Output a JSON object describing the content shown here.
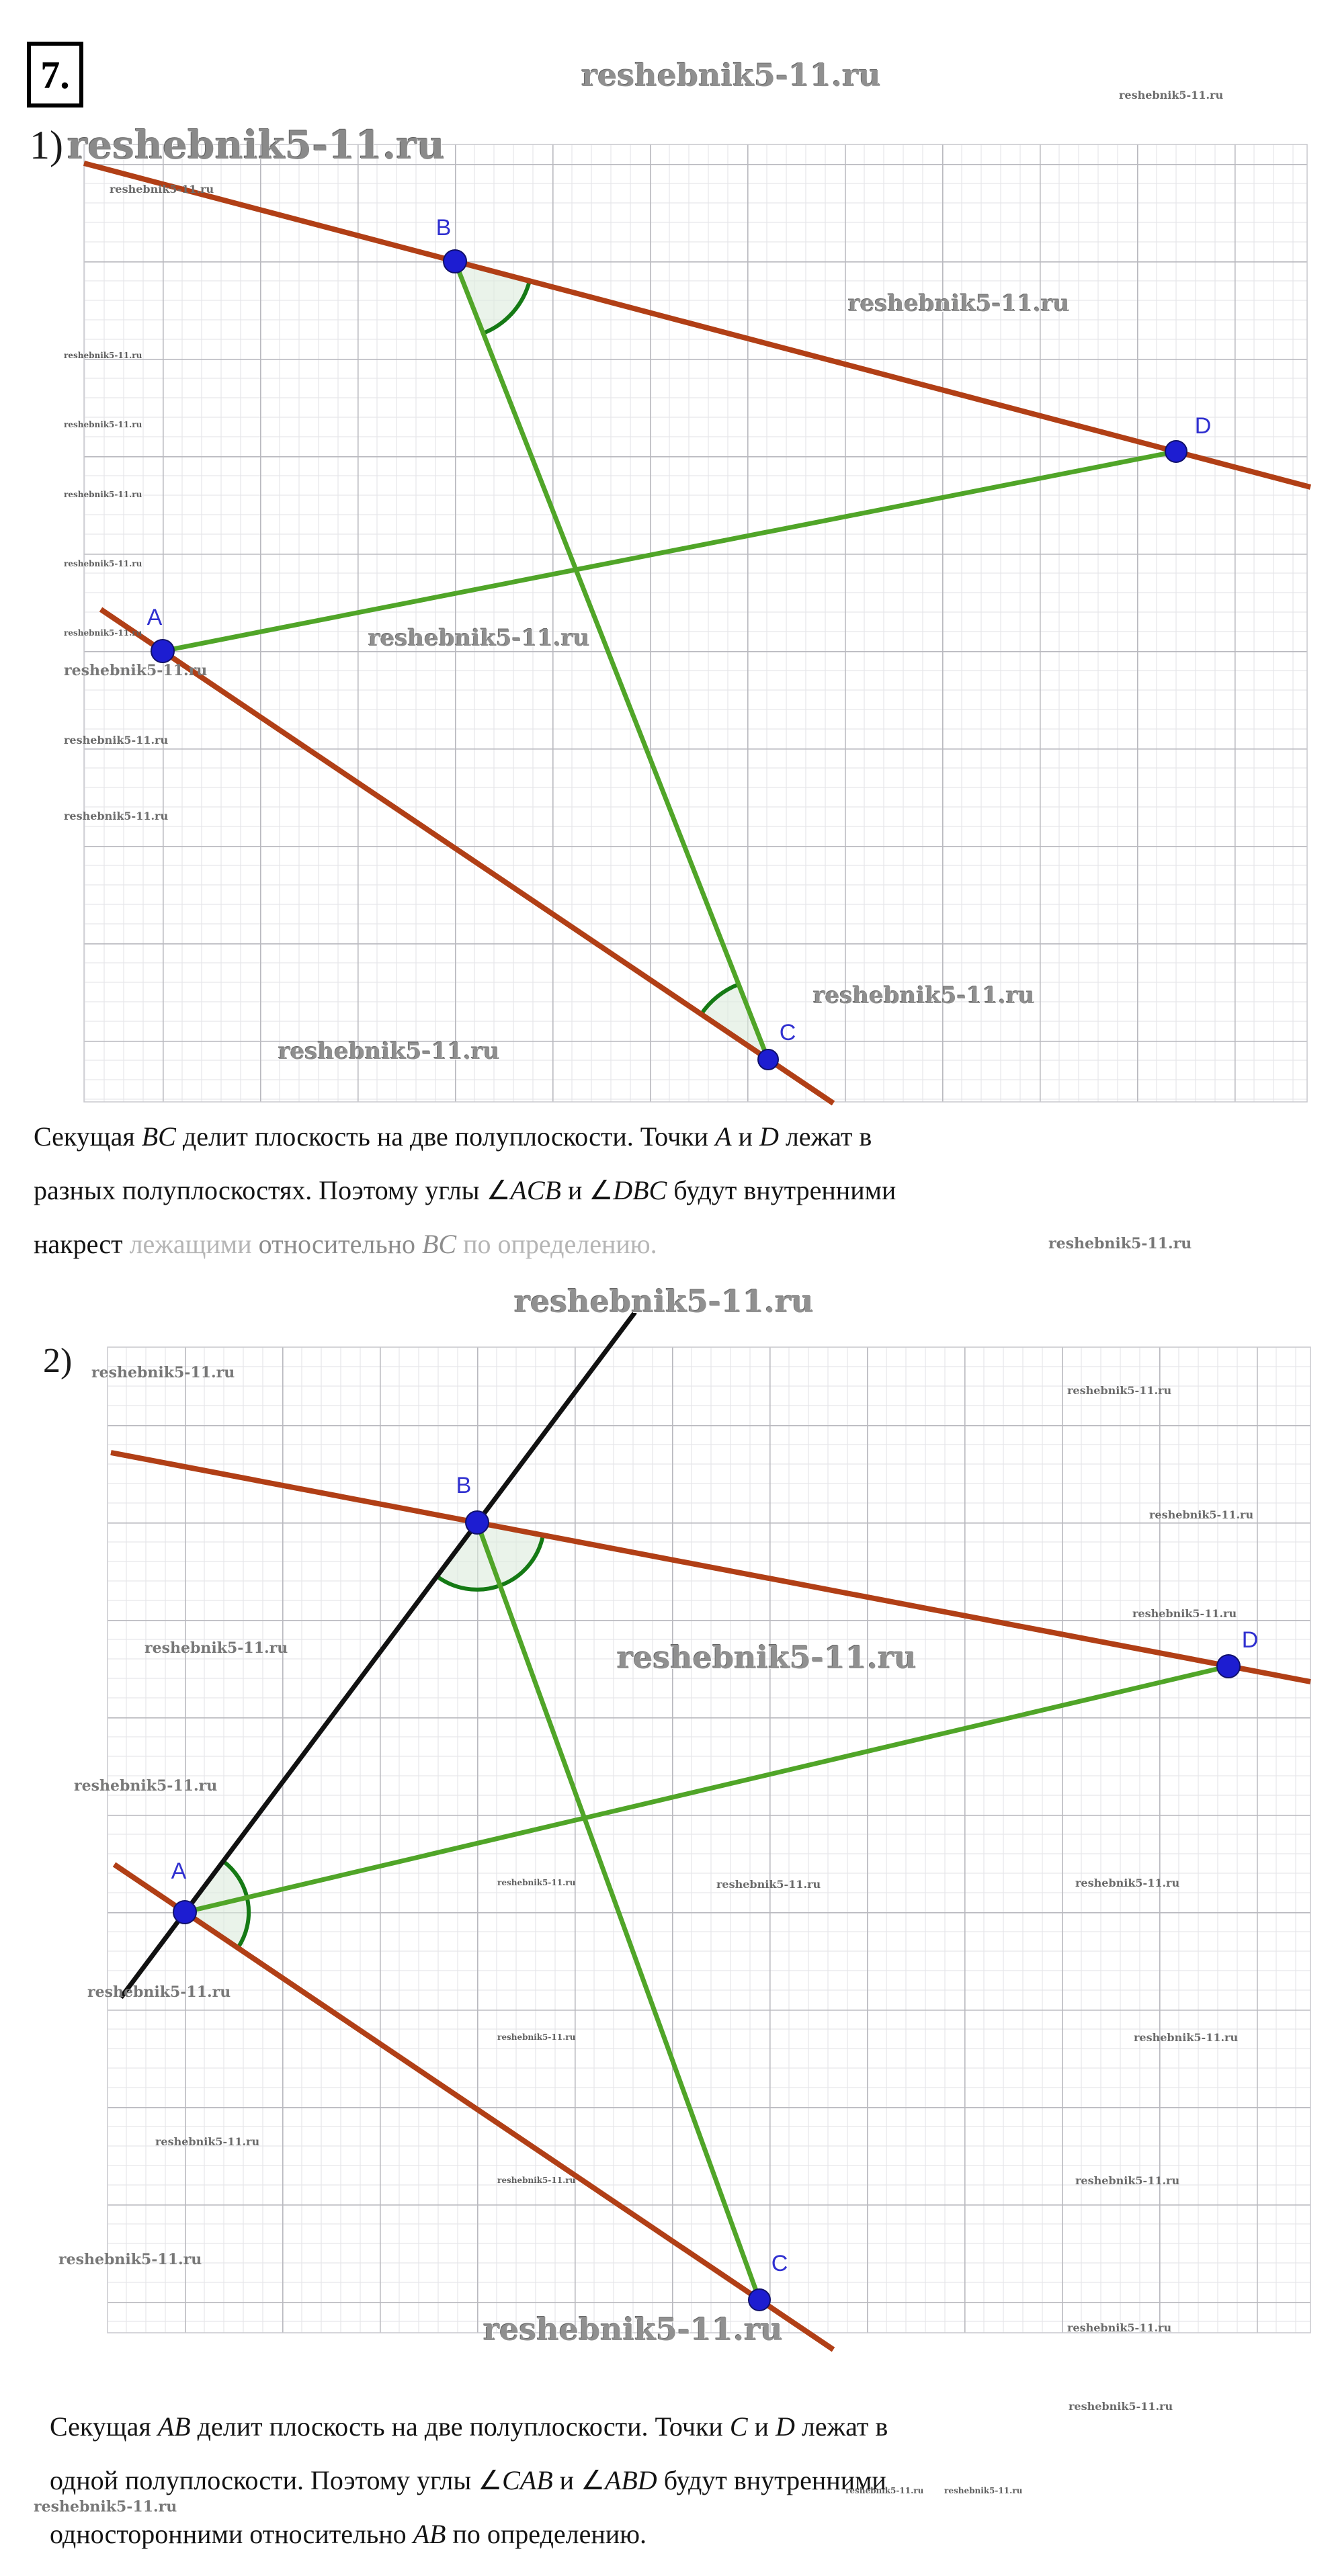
{
  "watermark": {
    "text": "reshebnik5-11.ru"
  },
  "header": {
    "problem_number": "7.",
    "part1_label": "1)",
    "part2_label": "2)"
  },
  "colors": {
    "transversal_red": "#b13f16",
    "segment_green": "#50a528",
    "angle_arc_green": "#157a15",
    "angle_fill": "#dcebdc",
    "point_blue": "#1d1dd1",
    "point_label_blue": "#3030d0",
    "line_black": "#111111",
    "grid_minor": "#e7e7ea",
    "grid_major": "#b9b9bf",
    "watermark_gray": "#8e8e8e"
  },
  "diagram1": {
    "points": {
      "A": "A",
      "B": "B",
      "C": "C",
      "D": "D"
    }
  },
  "diagram2": {
    "points": {
      "A": "A",
      "B": "B",
      "C": "C",
      "D": "D"
    }
  },
  "paragraph1": {
    "lines": [
      [
        {
          "t": "Секущая "
        },
        {
          "t": "BC",
          "s": "it"
        },
        {
          "t": " делит плоскость на две полуплоскости. Точки "
        },
        {
          "t": "A",
          "s": "it"
        },
        {
          "t": " и "
        },
        {
          "t": "D",
          "s": "it"
        },
        {
          "t": " лежат в"
        }
      ],
      [
        {
          "t": "разных полуплоскостях. Поэтому углы "
        },
        {
          "t": "∠"
        },
        {
          "t": "ACB",
          "s": "it"
        },
        {
          "t": " и "
        },
        {
          "t": "∠"
        },
        {
          "t": "DBC",
          "s": "it"
        },
        {
          "t": " будут внутренними"
        }
      ],
      [
        {
          "t": "накрест "
        },
        {
          "t": "лежащими ",
          "s": "fade2"
        },
        {
          "t": "относительно ",
          "s": "fade1"
        },
        {
          "t": "BC",
          "s": "it-fade1"
        },
        {
          "t": " по определению.",
          "s": "fade2"
        }
      ]
    ]
  },
  "paragraph2": {
    "lines": [
      [
        {
          "t": "Секущая "
        },
        {
          "t": "AB",
          "s": "it"
        },
        {
          "t": " делит плоскость на две полуплоскости. Точки "
        },
        {
          "t": "C",
          "s": "it"
        },
        {
          "t": " и "
        },
        {
          "t": "D",
          "s": "it"
        },
        {
          "t": " лежат в"
        }
      ],
      [
        {
          "t": "одной полуплоскости. Поэтому углы "
        },
        {
          "t": "∠"
        },
        {
          "t": "CAB",
          "s": "it"
        },
        {
          "t": " и "
        },
        {
          "t": "∠"
        },
        {
          "t": "ABD",
          "s": "it"
        },
        {
          "t": " будут внутренними"
        }
      ],
      [
        {
          "t": "односторонними относительно "
        },
        {
          "t": "AB",
          "s": "it"
        },
        {
          "t": " по определению."
        }
      ]
    ]
  }
}
